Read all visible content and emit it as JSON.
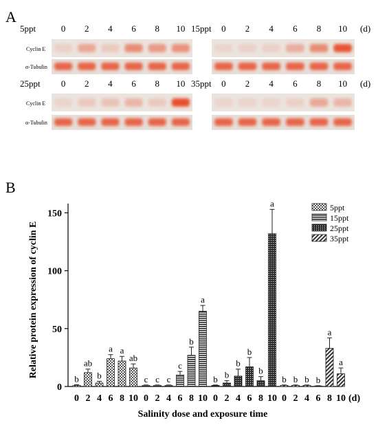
{
  "panel_a": {
    "label": "A",
    "day_unit": "(d)",
    "days": [
      "0",
      "2",
      "4",
      "6",
      "8",
      "10"
    ],
    "groups": [
      {
        "salinity": "5ppt",
        "cyclin_rel": [
          0.05,
          0.35,
          0.1,
          0.55,
          0.45,
          0.5
        ]
      },
      {
        "salinity": "15ppt",
        "cyclin_rel": [
          0.02,
          0.05,
          0.05,
          0.3,
          0.55,
          0.95
        ]
      },
      {
        "salinity": "25ppt",
        "cyclin_rel": [
          0.02,
          0.1,
          0.15,
          0.25,
          0.1,
          1.0
        ]
      },
      {
        "salinity": "35ppt",
        "cyclin_rel": [
          0.02,
          0.02,
          0.02,
          0.05,
          0.35,
          0.25
        ]
      }
    ],
    "row_labels": {
      "cyclin": "Cyclin E",
      "tubulin": "α-Tubulin"
    },
    "colors": {
      "band": "#e8502e",
      "membrane": "#ebe4de"
    }
  },
  "panel_b": {
    "label": "B",
    "chart_data": {
      "type": "bar",
      "xlabel": "Salinity dose and exposure time",
      "ylabel": "Relative protein expression of cyclin E",
      "x_unit": "(d)",
      "ylim": [
        0,
        158
      ],
      "yticks": [
        0,
        50,
        100,
        150
      ],
      "categories": [
        "0",
        "2",
        "4",
        "6",
        "8",
        "10"
      ],
      "series": [
        {
          "name": "5ppt",
          "pattern": "checker",
          "values": [
            1,
            12,
            3,
            24,
            22,
            16
          ],
          "errors": [
            0.5,
            3,
            1.5,
            3.5,
            4,
            3.5
          ],
          "letters": [
            "b",
            "ab",
            "b",
            "a",
            "a",
            "ab"
          ]
        },
        {
          "name": "15ppt",
          "pattern": "hstripe",
          "values": [
            1,
            1,
            1,
            10,
            27,
            65
          ],
          "errors": [
            0.3,
            0.3,
            0.3,
            3,
            7,
            5
          ],
          "letters": [
            "c",
            "c",
            "c",
            "c",
            "b",
            "a"
          ]
        },
        {
          "name": "25ppt",
          "pattern": "dots",
          "values": [
            1,
            3,
            9,
            17,
            5,
            132
          ],
          "errors": [
            0.3,
            2,
            6,
            8,
            3.5,
            21
          ],
          "letters": [
            "b",
            "b",
            "b",
            "b",
            "b",
            "a"
          ]
        },
        {
          "name": "35ppt",
          "pattern": "diag",
          "values": [
            1,
            1,
            1,
            0.5,
            33,
            11
          ],
          "errors": [
            0.3,
            0.3,
            0.3,
            0.2,
            9,
            5
          ],
          "letters": [
            "b",
            "b",
            "b",
            "b",
            "a",
            "a"
          ]
        }
      ]
    }
  }
}
